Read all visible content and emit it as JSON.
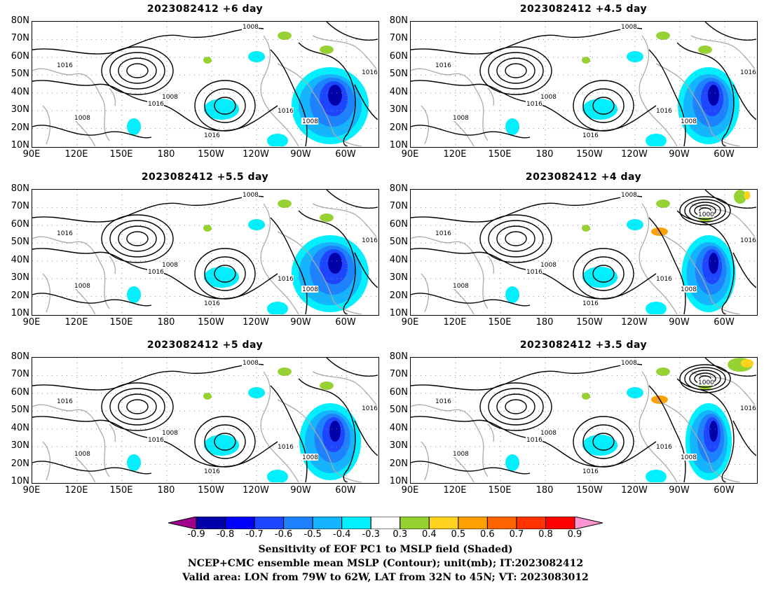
{
  "panels": [
    {
      "title": "2023082412  +6  day"
    },
    {
      "title": "2023082412  +4.5  day"
    },
    {
      "title": "2023082412  +5.5  day"
    },
    {
      "title": "2023082412  +4  day"
    },
    {
      "title": "2023082412  +5  day"
    },
    {
      "title": "2023082412  +3.5  day"
    }
  ],
  "axes": {
    "lat_ticks": [
      "80N",
      "70N",
      "60N",
      "50N",
      "40N",
      "30N",
      "20N",
      "10N"
    ],
    "lon_ticks": [
      "90E",
      "120E",
      "150E",
      "180",
      "150W",
      "120W",
      "90W",
      "60W"
    ]
  },
  "contour_labels": {
    "a": "1008",
    "b": "1016",
    "c": "1000"
  },
  "colorbar": {
    "labels": [
      "-0.9",
      "-0.8",
      "-0.7",
      "-0.6",
      "-0.5",
      "-0.4",
      "-0.3",
      "0.3",
      "0.4",
      "0.5",
      "0.6",
      "0.7",
      "0.8",
      "0.9"
    ],
    "colors": [
      "#a0008c",
      "#0000a8",
      "#0000ff",
      "#1e46ff",
      "#1e82ff",
      "#14b4ff",
      "#00f0ff",
      "#ffffff",
      "#96d232",
      "#ffd21e",
      "#ffa000",
      "#ff6400",
      "#ff3200",
      "#ff0000",
      "#ff96d2"
    ]
  },
  "caption": {
    "line1": "Sensitivity of EOF PC1 to MSLP field (Shaded)",
    "line2": "NCEP+CMC ensemble mean MSLP (Contour); unit(mb); IT:2023082412",
    "line3": "Valid area: LON from 79W to 62W, LAT from 32N to 45N; VT: 2023083012"
  }
}
